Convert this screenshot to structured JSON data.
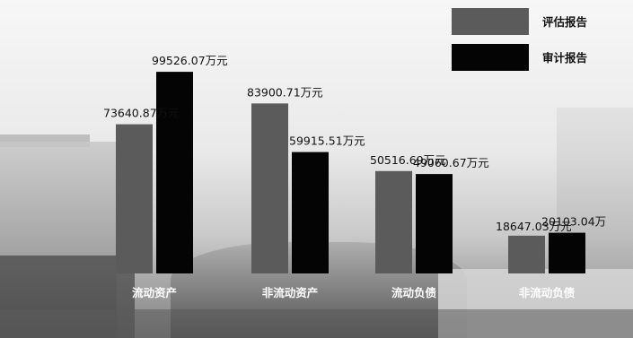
{
  "chart_data": {
    "type": "bar",
    "title": "",
    "xlabel": "",
    "ylabel": "",
    "categories": [
      "流动资产",
      "非流动资产",
      "流动负债",
      "非流动负债"
    ],
    "series": [
      {
        "name": "评估报告",
        "color": "#5b5b5b",
        "values": [
          73640.87,
          83900.71,
          50516.69,
          18647.03
        ],
        "labels": [
          "73640.87万元",
          "83900.71万元",
          "50516.69万元",
          "18647.03万元"
        ]
      },
      {
        "name": "审计报告",
        "color": "#040404",
        "values": [
          99526.07,
          59915.51,
          49060.67,
          20103.04
        ],
        "labels": [
          "99526.07万元",
          "59915.51万元",
          "49060.67万元",
          "20103.04万"
        ]
      }
    ],
    "ylim": [
      0,
      120000
    ],
    "grid": false,
    "legend_position": "top-right"
  }
}
